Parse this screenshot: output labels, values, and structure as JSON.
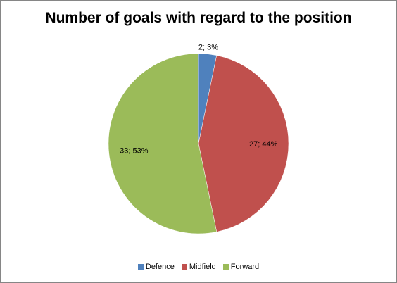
{
  "chart_data": {
    "type": "pie",
    "title": "Number of goals with regard to the position",
    "categories": [
      "Defence",
      "Midfield",
      "Forward"
    ],
    "values": [
      2,
      27,
      33
    ],
    "percentages": [
      3,
      44,
      53
    ],
    "data_labels": [
      "2; 3%",
      "27; 44%",
      "33; 53%"
    ],
    "colors": [
      "#4F81BD",
      "#C0504D",
      "#9BBB59"
    ],
    "legend": "bottom"
  }
}
